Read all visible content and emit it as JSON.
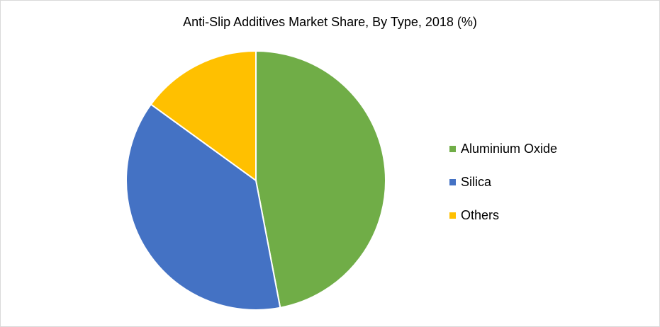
{
  "chart_data": {
    "type": "pie",
    "title": "Anti-Slip Additives Market Share, By Type, 2018 (%)",
    "categories": [
      "Aluminium Oxide",
      "Silica",
      "Others"
    ],
    "values": [
      47,
      38,
      15
    ],
    "colors": [
      "#70AD47",
      "#4472C4",
      "#FFC000"
    ],
    "start_angle": "12 o'clock, clockwise",
    "legend_position": "right"
  }
}
